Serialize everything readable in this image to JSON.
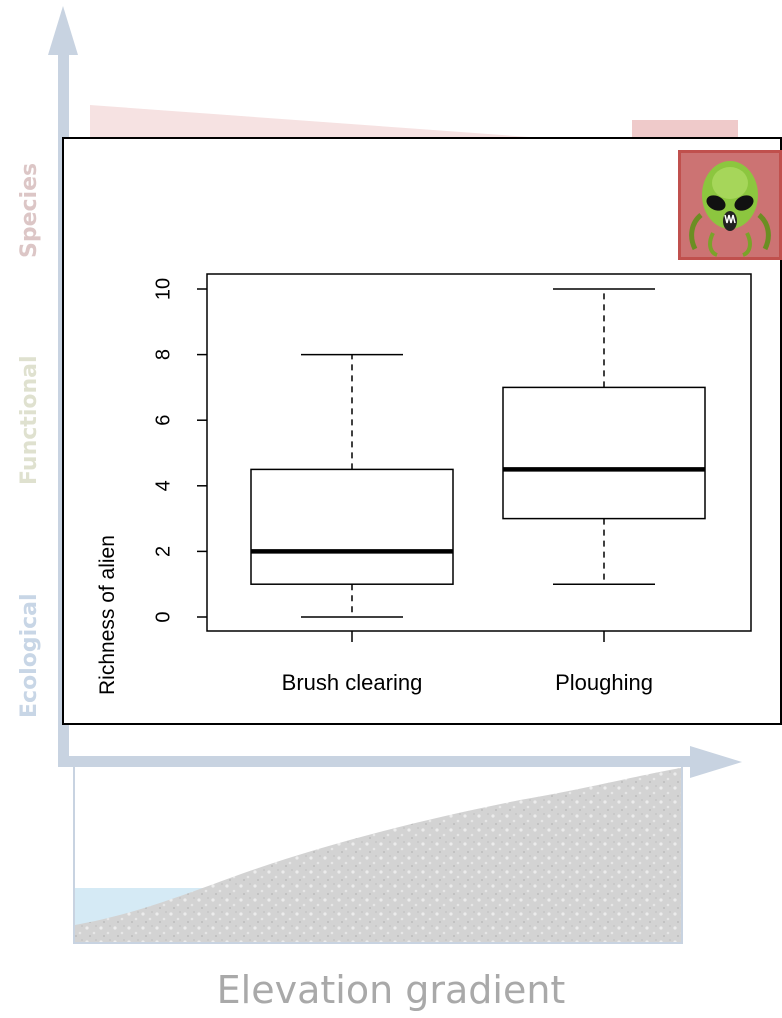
{
  "background": {
    "y_axis_labels": [
      "Species",
      "Functional",
      "Ecological"
    ],
    "x_axis_title": "Elevation gradient",
    "colors": {
      "axis_arrow": "#c8d3e1",
      "species": "#dcc6c6",
      "functional": "#dfe1cf",
      "ecological": "#c8d6e6",
      "landscape": "#cfcfcf",
      "water": "#d5eaf5"
    }
  },
  "icon": {
    "name": "alien-icon",
    "background": "#cc7373",
    "border": "#c0504d"
  },
  "chart_data": {
    "type": "boxplot",
    "ylabel": "Richness of alien",
    "xlabel": "",
    "ylim": [
      0,
      10
    ],
    "y_ticks": [
      0,
      2,
      4,
      6,
      8,
      10
    ],
    "categories": [
      "Brush clearing",
      "Ploughing"
    ],
    "boxes": [
      {
        "name": "Brush clearing",
        "min": 0,
        "q1": 1,
        "median": 2,
        "q3": 4.5,
        "max": 8
      },
      {
        "name": "Ploughing",
        "min": 1,
        "q1": 3,
        "median": 4.5,
        "q3": 7,
        "max": 10
      }
    ],
    "grid": false,
    "legend": "none"
  }
}
